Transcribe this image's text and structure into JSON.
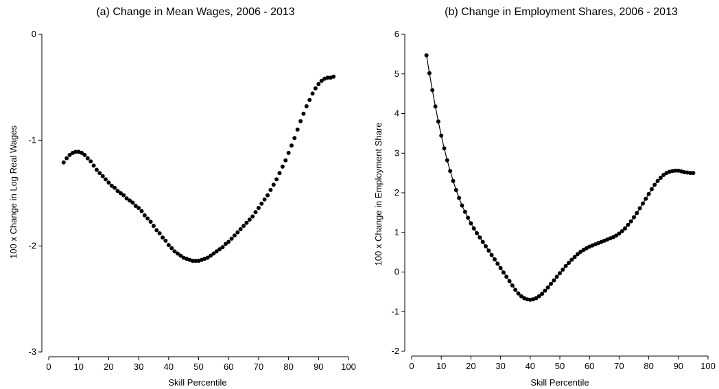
{
  "chart_data": [
    {
      "type": "line",
      "title": "(a) Change in Mean Wages, 2006 - 2013",
      "xlabel": "Skill Percentile",
      "ylabel": "100 x Change in Log Real Wages",
      "xlim": [
        0,
        100
      ],
      "ylim": [
        -3,
        0
      ],
      "xticks": [
        "0",
        "10",
        "20",
        "30",
        "40",
        "50",
        "60",
        "70",
        "80",
        "90",
        "100"
      ],
      "yticks": [
        "0",
        "-1",
        "-2",
        "-3"
      ],
      "grid": false,
      "connect_line": false,
      "x": [
        5,
        6,
        7,
        8,
        9,
        10,
        11,
        12,
        13,
        14,
        15,
        16,
        17,
        18,
        19,
        20,
        21,
        22,
        23,
        24,
        25,
        26,
        27,
        28,
        29,
        30,
        31,
        32,
        33,
        34,
        35,
        36,
        37,
        38,
        39,
        40,
        41,
        42,
        43,
        44,
        45,
        46,
        47,
        48,
        49,
        50,
        51,
        52,
        53,
        54,
        55,
        56,
        57,
        58,
        59,
        60,
        61,
        62,
        63,
        64,
        65,
        66,
        67,
        68,
        69,
        70,
        71,
        72,
        73,
        74,
        75,
        76,
        77,
        78,
        79,
        80,
        81,
        82,
        83,
        84,
        85,
        86,
        87,
        88,
        89,
        90,
        91,
        92,
        93,
        94,
        95
      ],
      "y": [
        -1.21,
        -1.17,
        -1.14,
        -1.12,
        -1.11,
        -1.11,
        -1.12,
        -1.14,
        -1.17,
        -1.2,
        -1.24,
        -1.28,
        -1.31,
        -1.34,
        -1.37,
        -1.4,
        -1.43,
        -1.45,
        -1.48,
        -1.5,
        -1.52,
        -1.55,
        -1.57,
        -1.59,
        -1.62,
        -1.64,
        -1.67,
        -1.71,
        -1.74,
        -1.77,
        -1.81,
        -1.85,
        -1.88,
        -1.92,
        -1.95,
        -1.99,
        -2.02,
        -2.05,
        -2.07,
        -2.09,
        -2.11,
        -2.12,
        -2.13,
        -2.14,
        -2.14,
        -2.14,
        -2.13,
        -2.12,
        -2.11,
        -2.09,
        -2.07,
        -2.05,
        -2.03,
        -2.01,
        -1.98,
        -1.96,
        -1.93,
        -1.9,
        -1.87,
        -1.84,
        -1.81,
        -1.78,
        -1.75,
        -1.72,
        -1.68,
        -1.64,
        -1.6,
        -1.56,
        -1.52,
        -1.47,
        -1.42,
        -1.37,
        -1.31,
        -1.25,
        -1.19,
        -1.12,
        -1.05,
        -0.98,
        -0.9,
        -0.82,
        -0.75,
        -0.68,
        -0.62,
        -0.56,
        -0.51,
        -0.47,
        -0.44,
        -0.42,
        -0.41,
        -0.41,
        -0.4
      ]
    },
    {
      "type": "line",
      "title": "(b) Change in Employment Shares, 2006 - 2013",
      "xlabel": "Skill Percentile",
      "ylabel": "100 x Change in Employment Share",
      "xlim": [
        0,
        100
      ],
      "ylim": [
        -2,
        6
      ],
      "xticks": [
        "0",
        "10",
        "20",
        "30",
        "40",
        "50",
        "60",
        "70",
        "80",
        "90",
        "100"
      ],
      "yticks": [
        "6",
        "5",
        "4",
        "3",
        "2",
        "1",
        "0",
        "-1",
        "-2"
      ],
      "grid": false,
      "connect_line": true,
      "x": [
        5,
        6,
        7,
        8,
        9,
        10,
        11,
        12,
        13,
        14,
        15,
        16,
        17,
        18,
        19,
        20,
        21,
        22,
        23,
        24,
        25,
        26,
        27,
        28,
        29,
        30,
        31,
        32,
        33,
        34,
        35,
        36,
        37,
        38,
        39,
        40,
        41,
        42,
        43,
        44,
        45,
        46,
        47,
        48,
        49,
        50,
        51,
        52,
        53,
        54,
        55,
        56,
        57,
        58,
        59,
        60,
        61,
        62,
        63,
        64,
        65,
        66,
        67,
        68,
        69,
        70,
        71,
        72,
        73,
        74,
        75,
        76,
        77,
        78,
        79,
        80,
        81,
        82,
        83,
        84,
        85,
        86,
        87,
        88,
        89,
        90,
        91,
        92,
        93,
        94,
        95
      ],
      "y": [
        5.47,
        5.02,
        4.59,
        4.18,
        3.8,
        3.44,
        3.12,
        2.82,
        2.55,
        2.3,
        2.07,
        1.87,
        1.68,
        1.52,
        1.37,
        1.23,
        1.1,
        0.98,
        0.87,
        0.76,
        0.65,
        0.54,
        0.43,
        0.32,
        0.21,
        0.1,
        -0.01,
        -0.12,
        -0.23,
        -0.34,
        -0.45,
        -0.54,
        -0.61,
        -0.66,
        -0.69,
        -0.7,
        -0.69,
        -0.66,
        -0.61,
        -0.55,
        -0.47,
        -0.39,
        -0.3,
        -0.21,
        -0.12,
        -0.03,
        0.06,
        0.15,
        0.23,
        0.31,
        0.38,
        0.45,
        0.51,
        0.56,
        0.6,
        0.64,
        0.67,
        0.7,
        0.73,
        0.76,
        0.79,
        0.82,
        0.85,
        0.88,
        0.92,
        0.97,
        1.03,
        1.1,
        1.19,
        1.28,
        1.38,
        1.49,
        1.61,
        1.73,
        1.85,
        1.97,
        2.09,
        2.2,
        2.3,
        2.38,
        2.45,
        2.5,
        2.53,
        2.55,
        2.56,
        2.56,
        2.54,
        2.52,
        2.51,
        2.5,
        2.5
      ]
    }
  ]
}
